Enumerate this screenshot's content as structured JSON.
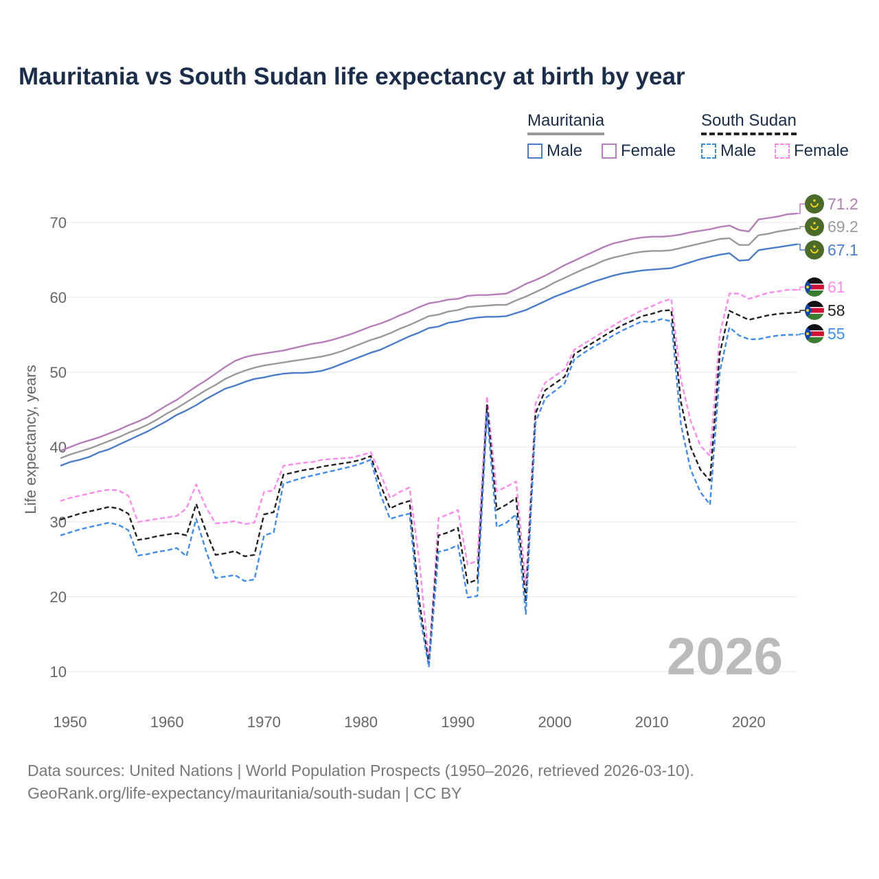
{
  "title": "Mauritania vs South Sudan life expectancy at birth by year",
  "legend": {
    "groups": [
      {
        "name": "Mauritania",
        "items": [
          {
            "label": "Male",
            "color": "#4a7cc9",
            "style": "solid"
          },
          {
            "label": "Female",
            "color": "#b57dba",
            "style": "solid"
          }
        ]
      },
      {
        "name": "South Sudan",
        "items": [
          {
            "label": "Male",
            "color": "#3f8cf0",
            "style": "dashed"
          },
          {
            "label": "Female",
            "color": "#ff88f0",
            "style": "dashed"
          }
        ]
      }
    ]
  },
  "year_watermark": "2026",
  "footer": {
    "line1": "Data sources: United Nations | World Population Prospects (1950–2026, retrieved 2026-03-10).",
    "line2": "GeoRank.org/life-expectancy/mauritania/south-sudan | CC BY"
  },
  "end_labels": [
    {
      "text": "71.2",
      "value": 71.2,
      "color": "#b57dba",
      "flag": "mauritania-flag-icon"
    },
    {
      "text": "69.2",
      "value": 69.2,
      "color": "#999999",
      "flag": "mauritania-flag-icon"
    },
    {
      "text": "67.1",
      "value": 67.1,
      "color": "#4a7cc9",
      "flag": "mauritania-flag-icon"
    },
    {
      "text": "61",
      "value": 61,
      "color": "#ff88f0",
      "flag": "south-sudan-flag-icon"
    },
    {
      "text": "58",
      "value": 58,
      "color": "#222222",
      "flag": "south-sudan-flag-icon"
    },
    {
      "text": "55",
      "value": 55,
      "color": "#3f8cf0",
      "flag": "south-sudan-flag-icon"
    }
  ],
  "chart_data": {
    "type": "line",
    "title": "Mauritania vs South Sudan life expectancy at birth by year",
    "xlabel": "",
    "ylabel": "Life expectancy, years",
    "xlim": [
      1950,
      2026
    ],
    "ylim": [
      10,
      73
    ],
    "xticks": [
      1950,
      1960,
      1970,
      1980,
      1990,
      2000,
      2010,
      2020
    ],
    "yticks": [
      10,
      20,
      30,
      40,
      50,
      60,
      70
    ],
    "grid": true,
    "x": [
      1950,
      1951,
      1952,
      1953,
      1954,
      1955,
      1956,
      1957,
      1958,
      1959,
      1960,
      1961,
      1962,
      1963,
      1964,
      1965,
      1966,
      1967,
      1968,
      1969,
      1970,
      1971,
      1972,
      1973,
      1974,
      1975,
      1976,
      1977,
      1978,
      1979,
      1980,
      1981,
      1982,
      1983,
      1984,
      1985,
      1986,
      1987,
      1988,
      1989,
      1990,
      1991,
      1992,
      1993,
      1994,
      1995,
      1996,
      1997,
      1998,
      1999,
      2000,
      2001,
      2002,
      2003,
      2004,
      2005,
      2006,
      2007,
      2008,
      2009,
      2010,
      2011,
      2012,
      2013,
      2014,
      2015,
      2016,
      2017,
      2018,
      2019,
      2020,
      2021,
      2022,
      2023,
      2024,
      2025,
      2026
    ],
    "series": [
      {
        "name": "Mauritania Female",
        "color": "#b57dba",
        "dashed": false,
        "values": [
          39.5,
          40.0,
          40.5,
          40.9,
          41.3,
          41.8,
          42.3,
          42.9,
          43.4,
          44.0,
          44.8,
          45.6,
          46.3,
          47.2,
          48.1,
          48.9,
          49.8,
          50.7,
          51.5,
          52.0,
          52.3,
          52.5,
          52.7,
          52.9,
          53.2,
          53.5,
          53.8,
          54.0,
          54.3,
          54.7,
          55.1,
          55.6,
          56.1,
          56.5,
          57.0,
          57.6,
          58.1,
          58.7,
          59.2,
          59.4,
          59.7,
          59.8,
          60.2,
          60.3,
          60.3,
          60.4,
          60.5,
          61.1,
          61.8,
          62.3,
          62.9,
          63.6,
          64.3,
          64.9,
          65.5,
          66.1,
          66.7,
          67.2,
          67.5,
          67.8,
          68.0,
          68.1,
          68.1,
          68.2,
          68.4,
          68.7,
          68.9,
          69.1,
          69.4,
          69.6,
          69.0,
          68.8,
          70.4,
          70.6,
          70.8,
          71.1,
          71.2
        ]
      },
      {
        "name": "Mauritania Total",
        "color": "#999999",
        "dashed": false,
        "values": [
          38.5,
          39.0,
          39.4,
          39.8,
          40.3,
          40.8,
          41.3,
          41.9,
          42.4,
          43.0,
          43.7,
          44.5,
          45.2,
          46.0,
          46.8,
          47.6,
          48.3,
          49.1,
          49.7,
          50.2,
          50.6,
          50.9,
          51.1,
          51.3,
          51.5,
          51.7,
          51.9,
          52.1,
          52.4,
          52.8,
          53.3,
          53.8,
          54.3,
          54.7,
          55.2,
          55.8,
          56.3,
          56.9,
          57.5,
          57.7,
          58.1,
          58.3,
          58.7,
          58.8,
          58.9,
          59.0,
          59.0,
          59.6,
          60.1,
          60.7,
          61.3,
          62.0,
          62.6,
          63.2,
          63.8,
          64.3,
          64.9,
          65.3,
          65.6,
          65.9,
          66.1,
          66.2,
          66.2,
          66.3,
          66.6,
          66.9,
          67.2,
          67.5,
          67.8,
          67.9,
          67.0,
          67.0,
          68.3,
          68.5,
          68.8,
          69.0,
          69.2
        ]
      },
      {
        "name": "Mauritania Male",
        "color": "#4a7cc9",
        "dashed": false,
        "values": [
          37.5,
          38.0,
          38.3,
          38.7,
          39.3,
          39.7,
          40.3,
          40.9,
          41.5,
          42.1,
          42.8,
          43.5,
          44.3,
          44.9,
          45.6,
          46.4,
          47.1,
          47.8,
          48.2,
          48.7,
          49.1,
          49.3,
          49.6,
          49.8,
          49.9,
          49.9,
          50.0,
          50.2,
          50.6,
          51.1,
          51.6,
          52.1,
          52.6,
          53.0,
          53.6,
          54.2,
          54.8,
          55.3,
          55.9,
          56.1,
          56.6,
          56.8,
          57.1,
          57.3,
          57.4,
          57.4,
          57.5,
          57.9,
          58.3,
          58.9,
          59.5,
          60.1,
          60.6,
          61.1,
          61.6,
          62.1,
          62.5,
          62.9,
          63.2,
          63.4,
          63.6,
          63.7,
          63.8,
          63.9,
          64.3,
          64.7,
          65.1,
          65.4,
          65.7,
          65.9,
          64.9,
          65.0,
          66.3,
          66.5,
          66.7,
          66.9,
          67.1
        ]
      },
      {
        "name": "South Sudan Female",
        "color": "#ff88f0",
        "dashed": true,
        "values": [
          32.8,
          33.2,
          33.5,
          33.8,
          34.1,
          34.3,
          34.2,
          33.5,
          30.0,
          30.2,
          30.4,
          30.6,
          30.8,
          31.8,
          35.0,
          32.0,
          29.8,
          29.9,
          30.1,
          29.7,
          29.9,
          34.0,
          34.2,
          37.5,
          37.7,
          37.9,
          38.0,
          38.3,
          38.4,
          38.5,
          38.6,
          38.9,
          39.3,
          36.5,
          33.2,
          34.0,
          34.6,
          25.0,
          11.5,
          30.5,
          31.0,
          31.6,
          24.3,
          24.8,
          46.8,
          34.1,
          34.7,
          35.4,
          21.5,
          45.8,
          48.6,
          49.5,
          50.4,
          53.0,
          53.8,
          54.6,
          55.4,
          56.2,
          57.0,
          57.6,
          58.3,
          58.8,
          59.4,
          59.8,
          49.0,
          43.5,
          40.2,
          38.8,
          55.0,
          60.5,
          60.5,
          59.8,
          60.2,
          60.6,
          60.8,
          61.0,
          61.0
        ]
      },
      {
        "name": "South Sudan Total",
        "color": "#222222",
        "dashed": true,
        "values": [
          30.3,
          30.7,
          31.1,
          31.4,
          31.7,
          32.0,
          31.8,
          31.1,
          27.6,
          27.8,
          28.1,
          28.3,
          28.5,
          28.2,
          32.4,
          28.8,
          25.6,
          25.8,
          26.1,
          25.4,
          25.6,
          31.0,
          31.3,
          36.3,
          36.6,
          36.9,
          37.1,
          37.4,
          37.6,
          37.8,
          38.0,
          38.3,
          38.8,
          35.0,
          31.8,
          32.4,
          32.8,
          19.5,
          11.0,
          28.2,
          28.6,
          29.2,
          21.8,
          22.3,
          45.6,
          31.6,
          32.3,
          33.2,
          19.3,
          44.5,
          47.6,
          48.5,
          49.4,
          52.4,
          53.2,
          54.0,
          54.8,
          55.6,
          56.3,
          56.9,
          57.5,
          57.8,
          58.2,
          58.3,
          46.0,
          40.0,
          37.0,
          35.5,
          52.5,
          58.2,
          57.6,
          57.0,
          57.3,
          57.6,
          57.8,
          57.9,
          58.0
        ]
      },
      {
        "name": "South Sudan Male",
        "color": "#3f8cf0",
        "dashed": true,
        "values": [
          28.2,
          28.6,
          29.0,
          29.3,
          29.6,
          29.9,
          29.6,
          28.9,
          25.5,
          25.7,
          26.0,
          26.2,
          26.5,
          25.4,
          30.4,
          26.2,
          22.5,
          22.7,
          22.9,
          22.1,
          22.3,
          28.2,
          28.6,
          35.1,
          35.5,
          35.9,
          36.2,
          36.5,
          36.8,
          37.1,
          37.4,
          37.8,
          38.3,
          33.7,
          30.4,
          30.8,
          31.1,
          18.0,
          10.6,
          26.0,
          26.3,
          26.9,
          19.9,
          20.1,
          44.5,
          29.3,
          29.9,
          31.0,
          17.7,
          43.3,
          46.5,
          47.5,
          48.5,
          51.7,
          52.6,
          53.4,
          54.1,
          54.9,
          55.6,
          56.2,
          56.8,
          56.7,
          57.1,
          56.8,
          43.0,
          37.0,
          34.0,
          32.3,
          50.0,
          56.0,
          54.9,
          54.4,
          54.4,
          54.7,
          54.9,
          55.0,
          55.0
        ]
      }
    ]
  }
}
